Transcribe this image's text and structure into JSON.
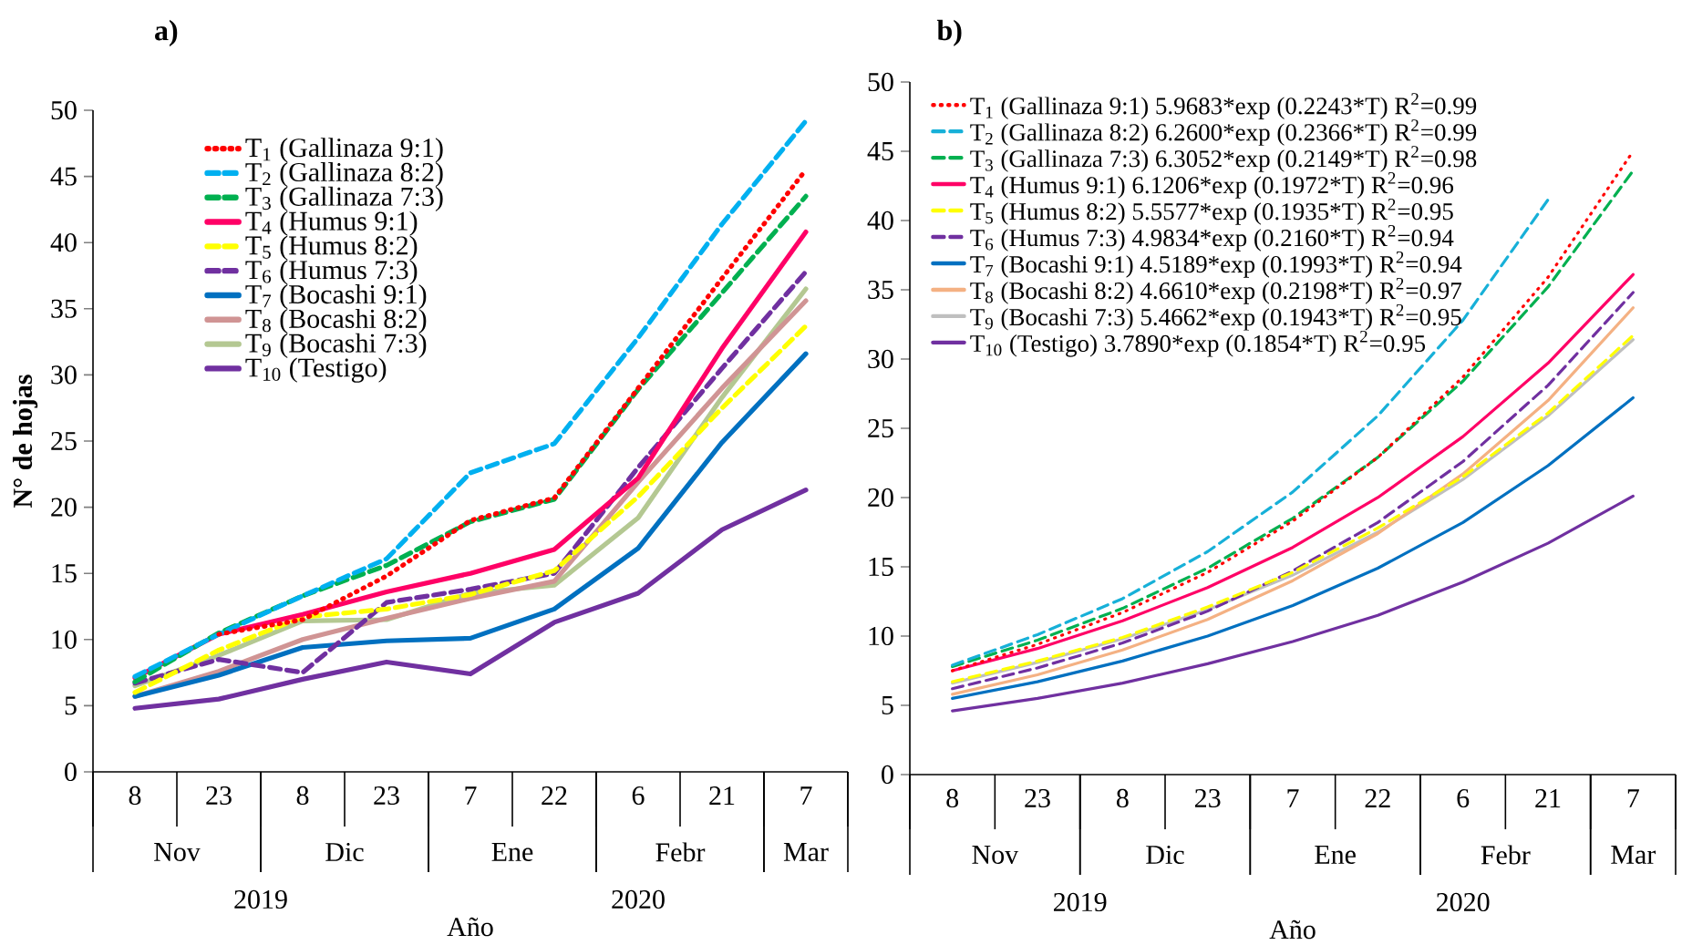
{
  "chart_data": [
    {
      "type": "line",
      "title": "a)",
      "xlabel": "Año",
      "ylabel": "N° de hojas",
      "categories": [
        "8",
        "23",
        "8",
        "23",
        "7",
        "22",
        "6",
        "21",
        "7"
      ],
      "ylim": [
        0,
        50
      ],
      "yticks": [
        0,
        5,
        10,
        15,
        20,
        25,
        30,
        35,
        40,
        45,
        50
      ],
      "legend": "top left",
      "annotations": [
        "Nov",
        "Dic",
        "Ene",
        "Febr",
        "Mar",
        "2019",
        "2020"
      ],
      "series": [
        {
          "name": "T$_{1}$ (Gallinaza 9:1)",
          "color": "#ff0000",
          "line_style": "dotted",
          "values": [
            null,
            10.4,
            11.5,
            14.8,
            19.0,
            20.7,
            29.0,
            37.3,
            45.5
          ]
        },
        {
          "name": "T$_{2}$ (Gallinaza 8:2)",
          "color": "#00b0f0",
          "line_style": "dashed",
          "values": [
            7.2,
            10.4,
            13.3,
            16.1,
            22.6,
            24.8,
            32.8,
            41.4,
            49.2
          ]
        },
        {
          "name": "T$_{3}$ (Gallinaza 7:3)",
          "color": "#00b050",
          "line_style": "dashed",
          "values": [
            6.8,
            10.5,
            13.3,
            15.6,
            18.9,
            20.6,
            28.9,
            36.2,
            43.5
          ]
        },
        {
          "name": "T$_{4}$ (Humus 9:1)",
          "color": "#ff0066",
          "line_style": "solid",
          "values": [
            7.1,
            10.4,
            11.9,
            13.6,
            15.0,
            16.8,
            22.2,
            32.0,
            40.8
          ]
        },
        {
          "name": "T$_{5}$ (Humus 8:2)",
          "color": "#ffff00",
          "line_style": "dashed",
          "values": [
            6.0,
            9.2,
            11.7,
            12.3,
            13.4,
            15.2,
            20.8,
            27.5,
            33.7
          ]
        },
        {
          "name": "T$_{6}$ (Humus 7:3)",
          "color": "#7030a0",
          "line_style": "dashed",
          "values": [
            6.7,
            8.5,
            7.5,
            12.8,
            13.8,
            15.0,
            23.0,
            30.5,
            37.8
          ]
        },
        {
          "name": "T$_{7}$ (Bocashi 9:1)",
          "color": "#0070c0",
          "line_style": "solid",
          "values": [
            5.7,
            7.3,
            9.4,
            9.9,
            10.1,
            12.3,
            16.9,
            24.9,
            31.6
          ]
        },
        {
          "name": "T$_{8}$ (Bocashi 8:2)",
          "color": "#d09494",
          "line_style": "solid",
          "values": [
            5.7,
            7.6,
            10.0,
            11.6,
            13.1,
            14.4,
            21.9,
            29.0,
            35.6
          ]
        },
        {
          "name": "T$_{9}$ (Bocashi 7:3)",
          "color": "#b4c892",
          "line_style": "solid",
          "values": [
            6.5,
            8.8,
            11.4,
            11.5,
            13.5,
            14.1,
            19.2,
            28.3,
            36.5
          ]
        },
        {
          "name": "T$_{10}$ (Testigo)",
          "color": "#7030a0",
          "line_style": "solid",
          "values": [
            4.8,
            5.5,
            7.0,
            8.3,
            7.4,
            11.3,
            13.5,
            18.3,
            21.3
          ]
        }
      ]
    },
    {
      "type": "line",
      "title": "b)",
      "xlabel": "Año",
      "categories": [
        "8",
        "23",
        "8",
        "23",
        "7",
        "22",
        "6",
        "21",
        "7"
      ],
      "ylim": [
        0,
        50
      ],
      "yticks": [
        0,
        5,
        10,
        15,
        20,
        25,
        30,
        35,
        40,
        45,
        50
      ],
      "legend": "top left",
      "annotations": [
        "Nov",
        "Dic",
        "Ene",
        "Febr",
        "Mar",
        "2019",
        "2020"
      ],
      "series": [
        {
          "name": "T$_{1}$ (Gallinaza 9:1) 5.9683*exp (0.2243*T) R$^{2}$=0.99",
          "color": "#ff0000",
          "line_style": "dotted",
          "values": [
            7.5,
            9.4,
            11.7,
            14.6,
            18.3,
            22.9,
            28.7,
            35.9,
            45.0
          ]
        },
        {
          "name": "T$_{2}$ (Gallinaza 8:2) 6.2600*exp (0.2366*T) R$^{2}$=0.99",
          "color": "#17b0d8",
          "line_style": "dashed",
          "values": [
            7.9,
            10.1,
            12.7,
            16.1,
            20.4,
            25.9,
            32.8,
            41.5,
            null
          ]
        },
        {
          "name": "T$_{3}$ (Gallinaza 7:3) 6.3052*exp (0.2149*T) R$^{2}$=0.98",
          "color": "#00b050",
          "line_style": "dashed",
          "values": [
            7.8,
            9.7,
            12.0,
            14.9,
            18.5,
            22.9,
            28.4,
            35.2,
            43.6
          ]
        },
        {
          "name": "T$_{4}$ (Humus 9:1) 6.1206*exp (0.1972*T) R$^{2}$=0.96",
          "color": "#ff0066",
          "line_style": "solid",
          "values": [
            7.5,
            9.1,
            11.1,
            13.5,
            16.4,
            20.0,
            24.4,
            29.7,
            36.1
          ]
        },
        {
          "name": "T$_{5}$ (Humus 8:2) 5.5577*exp (0.1935*T) R$^{2}$=0.95",
          "color": "#ffff00",
          "line_style": "dashed",
          "values": [
            6.7,
            8.2,
            9.9,
            12.1,
            14.6,
            17.8,
            21.5,
            26.1,
            31.7
          ]
        },
        {
          "name": "T$_{6}$ (Humus 7:3) 4.9834*exp (0.2160*T) R$^{2}$=0.94",
          "color": "#7030a0",
          "line_style": "dashed",
          "values": [
            6.2,
            7.7,
            9.5,
            11.8,
            14.7,
            18.2,
            22.6,
            28.1,
            34.8
          ]
        },
        {
          "name": "T$_{7}$ (Bocashi 9:1) 4.5189*exp (0.1993*T) R$^{2}$=0.94",
          "color": "#0070c0",
          "line_style": "solid",
          "values": [
            5.5,
            6.7,
            8.2,
            10.0,
            12.2,
            14.9,
            18.2,
            22.3,
            27.2
          ]
        },
        {
          "name": "T$_{8}$ (Bocashi 8:2) 4.6610*exp (0.2198*T) R$^{2}$=0.97",
          "color": "#f4b183",
          "line_style": "solid",
          "values": [
            5.8,
            7.2,
            9.0,
            11.2,
            14.0,
            17.4,
            21.7,
            27.0,
            33.7
          ]
        },
        {
          "name": "T$_{9}$ (Bocashi 7:3) 5.4662*exp (0.1943*T) R$^{2}$=0.95",
          "color": "#bfbfbf",
          "line_style": "solid",
          "values": [
            6.6,
            8.1,
            9.8,
            11.9,
            14.4,
            17.5,
            21.3,
            25.9,
            31.4
          ]
        },
        {
          "name": "T$_{10}$ (Testigo) 3.7890*exp (0.1854*T) R$^{2}$=0.95",
          "color": "#7030a0",
          "line_style": "solid",
          "values": [
            4.6,
            5.5,
            6.6,
            8.0,
            9.6,
            11.5,
            13.9,
            16.7,
            20.1
          ]
        }
      ]
    }
  ]
}
